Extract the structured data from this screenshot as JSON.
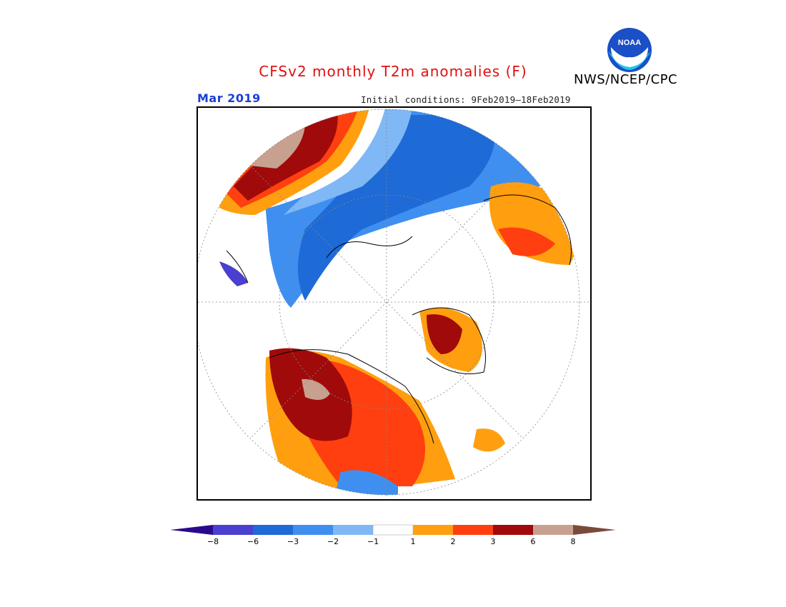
{
  "title": "CFSv2 monthly T2m anomalies (F)",
  "agency": "NWS/NCEP/CPC",
  "logo": {
    "text": "NOAA",
    "icon": "noaa-logo"
  },
  "month": "Mar 2019",
  "initial_conditions": "Initial conditions: 9Feb2019–18Feb2019",
  "colorbar": {
    "ticks": [
      "−8",
      "−6",
      "−3",
      "−2",
      "−1",
      "1",
      "2",
      "3",
      "6",
      "8"
    ],
    "colors": [
      "#2a0a8c",
      "#4a3fd0",
      "#1e6ad6",
      "#3f8ff0",
      "#7fb8f5",
      "#ffffff",
      "#ff9f0f",
      "#ff3f10",
      "#a00a0a",
      "#c8a090",
      "#7a4a3a"
    ]
  },
  "map": {
    "projection": "north-polar-stereographic",
    "legend_position": "bottom"
  }
}
